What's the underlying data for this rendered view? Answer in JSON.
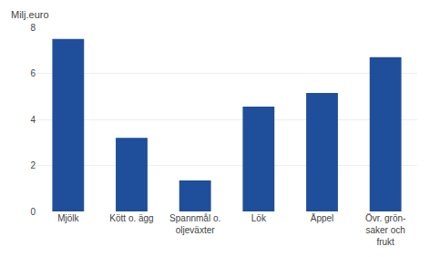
{
  "chart_data": {
    "type": "bar",
    "ylabel": "Milj.euro",
    "categories": [
      "Mjölk",
      "Kött o. ägg",
      "Spannmål o.\noljeväxter",
      "Lök",
      "Äppel",
      "Övr. grön-\nsaker och\nfrukt"
    ],
    "values": [
      7.5,
      3.2,
      1.35,
      4.55,
      5.15,
      6.7
    ],
    "color": "#1F4E9B",
    "ylim": [
      0,
      8
    ],
    "yticks": [
      0,
      2,
      4,
      6,
      8
    ],
    "grid": true
  }
}
